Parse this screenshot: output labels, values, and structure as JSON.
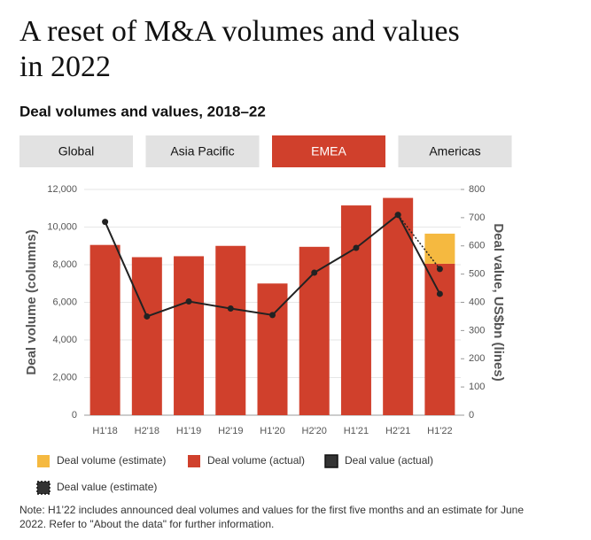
{
  "title": [
    "A reset of M&A volumes and values",
    "in 2022"
  ],
  "tabs": [
    "Global",
    "Asia Pacific",
    "EMEA",
    "Americas"
  ],
  "active_tab": "EMEA",
  "note": "Note: H1’22 includes announced deal volumes and values for the first five months and an estimate for June 2022. Refer to \"About the data\" for further information.",
  "chart_data": {
    "type": "combo",
    "title": "Deal volumes and values, 2018–22",
    "categories": [
      "H1'18",
      "H2'18",
      "H1'19",
      "H2'19",
      "H1'20",
      "H2'20",
      "H1'21",
      "H2'21",
      "H1'22"
    ],
    "ylabel": "Deal volume (columns)",
    "y2label": "Deal value, US$bn (lines)",
    "ylim": [
      0,
      12000
    ],
    "yticks": [
      0,
      {
        "value": 2000,
        "label": "2,000"
      },
      {
        "value": 4000,
        "label": "4,000"
      },
      {
        "value": 6000,
        "label": "6,000"
      },
      {
        "value": 8000,
        "label": "8,000"
      },
      {
        "value": 10000,
        "label": "10,000"
      },
      {
        "value": 12000,
        "label": "12,000"
      }
    ],
    "y2lim": [
      0,
      800
    ],
    "y2ticks": [
      0,
      100,
      200,
      300,
      400,
      500,
      600,
      700,
      800
    ],
    "grid": true,
    "series": [
      {
        "name": "Deal volume (estimate)",
        "type": "bar",
        "color": "#f5b940",
        "values": [
          null,
          null,
          null,
          null,
          null,
          null,
          null,
          null,
          1600
        ]
      },
      {
        "name": "Deal volume (actual)",
        "type": "bar",
        "color": "#d0402c",
        "values": [
          9050,
          8400,
          8450,
          9000,
          7000,
          8950,
          11150,
          11550,
          8050
        ]
      },
      {
        "name": "Deal value (actual)",
        "type": "line",
        "axis": "y2",
        "color": "#222222",
        "values": [
          685,
          350,
          403,
          378,
          355,
          505,
          593,
          710,
          430
        ]
      },
      {
        "name": "Deal value (estimate)",
        "type": "line",
        "axis": "y2",
        "color": "#222222",
        "dashed": true,
        "values": [
          null,
          null,
          null,
          null,
          null,
          null,
          null,
          710,
          518
        ]
      }
    ]
  }
}
